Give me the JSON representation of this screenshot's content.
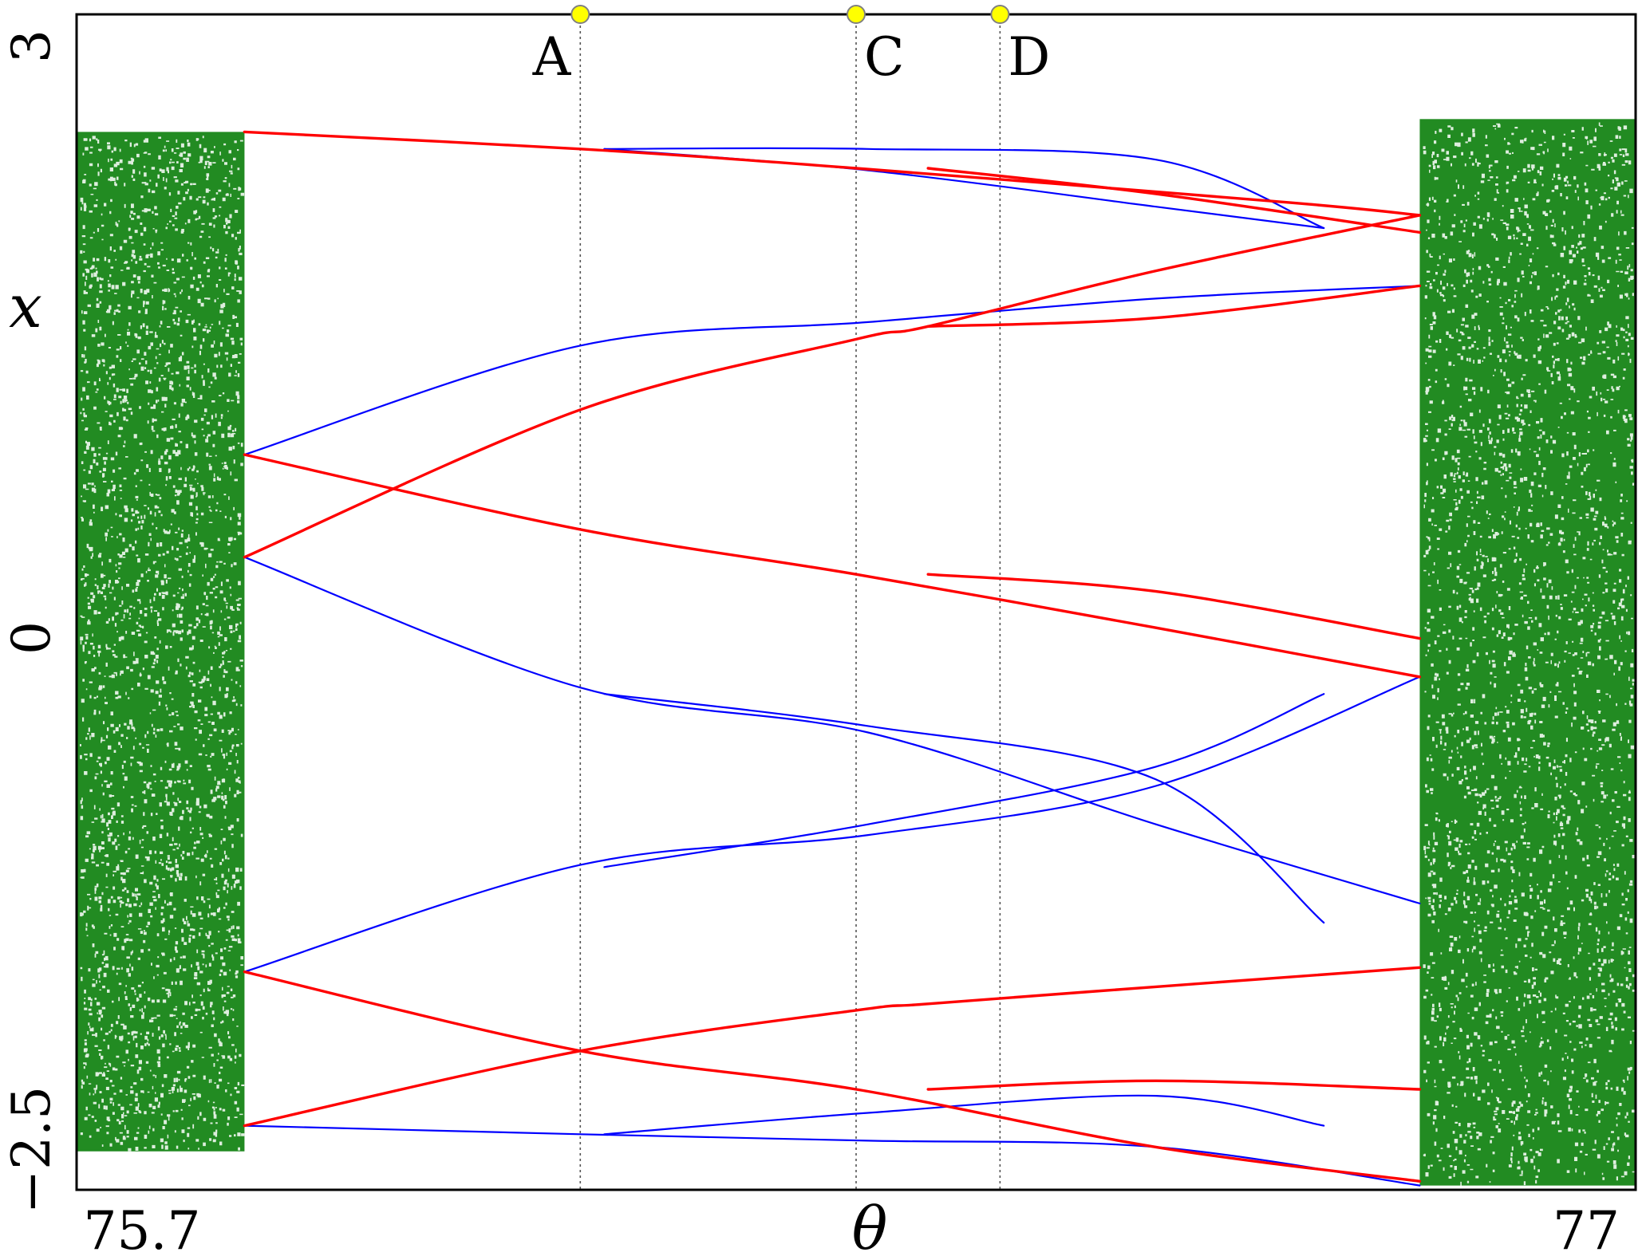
{
  "chart_data": {
    "type": "scatter",
    "title": "",
    "xlabel": "θ",
    "ylabel": "x",
    "xlim": [
      75.7,
      77
    ],
    "ylim": [
      -2.5,
      3
    ],
    "x_tick_labels": [
      "75.7",
      "77"
    ],
    "y_tick_labels": [
      "3",
      "0",
      "−2.5"
    ],
    "grid": false,
    "legend": "none",
    "colors": {
      "chaotic_band": "#228b22",
      "branch_red": "#ff0000",
      "branch_blue": "#0000ff",
      "marker_fill": "#ffff00",
      "marker_line": "#808080"
    },
    "markers": [
      {
        "label": "A",
        "x": 76.12
      },
      {
        "label": "C",
        "x": 76.35
      },
      {
        "label": "D",
        "x": 76.47
      }
    ],
    "chaotic_regions": [
      {
        "x_range": [
          75.7,
          75.84
        ],
        "y_range": [
          -2.32,
          2.45
        ]
      },
      {
        "x_range": [
          76.82,
          77
        ],
        "y_range": [
          -2.48,
          2.51
        ]
      }
    ],
    "series": [
      {
        "color": "red",
        "curves": [
          {
            "x": [
              75.84,
              76.12,
              76.35,
              76.71,
              76.82
            ],
            "y": [
              2.45,
              2.37,
              2.28,
              2.12,
              2.06
            ]
          },
          {
            "x": [
              75.84,
              76.12,
              76.35,
              76.6,
              76.82
            ],
            "y": [
              0.94,
              0.59,
              0.38,
              0.13,
              -0.1
            ]
          },
          {
            "x": [
              75.84,
              76.12,
              76.35,
              76.6,
              76.82
            ],
            "y": [
              -1.48,
              -1.85,
              -2.03,
              -2.3,
              -2.46
            ]
          },
          {
            "x": [
              75.84,
              76.12,
              76.35,
              76.41,
              76.6,
              76.82
            ],
            "y": [
              -2.2,
              -1.85,
              -1.66,
              -1.63,
              -1.55,
              -1.46
            ]
          },
          {
            "x": [
              75.84,
              76.12,
              76.35,
              76.41,
              76.6,
              76.82
            ],
            "y": [
              0.46,
              1.15,
              1.48,
              1.54,
              1.8,
              2.06
            ]
          },
          {
            "x": [
              76.41,
              76.6,
              76.82
            ],
            "y": [
              1.54,
              1.58,
              1.73
            ]
          },
          {
            "x": [
              76.41,
              76.6,
              76.82
            ],
            "y": [
              0.38,
              0.3,
              0.08
            ]
          },
          {
            "x": [
              76.41,
              76.6,
              76.82
            ],
            "y": [
              -2.03,
              -1.99,
              -2.03
            ]
          },
          {
            "x": [
              76.41,
              76.6,
              76.82
            ],
            "y": [
              2.28,
              2.16,
              1.98
            ]
          }
        ]
      },
      {
        "color": "blue",
        "curves": [
          {
            "x": [
              75.84,
              76.12,
              76.36,
              76.6,
              76.82
            ],
            "y": [
              0.94,
              1.45,
              1.56,
              1.67,
              1.73
            ]
          },
          {
            "x": [
              75.84,
              76.12,
              76.36,
              76.6,
              76.82
            ],
            "y": [
              0.46,
              -0.15,
              -0.36,
              -0.79,
              -1.16
            ]
          },
          {
            "x": [
              75.84,
              76.12,
              76.36,
              76.6,
              76.82
            ],
            "y": [
              -1.48,
              -0.98,
              -0.84,
              -0.61,
              -0.1
            ]
          },
          {
            "x": [
              75.84,
              76.12,
              76.36,
              76.6,
              76.82
            ],
            "y": [
              -2.2,
              -2.24,
              -2.27,
              -2.3,
              -2.48
            ]
          },
          {
            "x": [
              76.14,
              76.36,
              76.6,
              76.74
            ],
            "y": [
              2.37,
              2.37,
              2.32,
              2.0
            ]
          },
          {
            "x": [
              76.14,
              76.36,
              76.6,
              76.74
            ],
            "y": [
              2.37,
              2.27,
              2.1,
              2.0
            ]
          },
          {
            "x": [
              76.14,
              76.36,
              76.6,
              76.74
            ],
            "y": [
              -0.18,
              -0.33,
              -0.58,
              -1.25
            ]
          },
          {
            "x": [
              76.14,
              76.36,
              76.6,
              76.74
            ],
            "y": [
              -0.99,
              -0.79,
              -0.52,
              -0.18
            ]
          },
          {
            "x": [
              76.14,
              76.36,
              76.6,
              76.74
            ],
            "y": [
              -2.24,
              -2.14,
              -2.06,
              -2.2
            ]
          }
        ]
      }
    ]
  }
}
